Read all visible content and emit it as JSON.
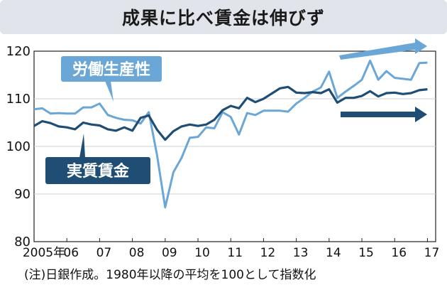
{
  "title": "成果に比べ賃金は伸びず",
  "note": "(注)日銀作成。1980年以降の平均を100として指数化",
  "chart_data": {
    "type": "line",
    "ylim": [
      80,
      120
    ],
    "yticks": [
      "120",
      "110",
      "100",
      "90",
      "80"
    ],
    "xticks": [
      "2005年",
      "06",
      "07",
      "08",
      "09",
      "10",
      "11",
      "12",
      "13",
      "14",
      "15",
      "16",
      "17"
    ],
    "x_range": [
      2005.0,
      2017.25
    ],
    "series": [
      {
        "name": "労働生産性",
        "color": "#6aa6d6",
        "x": [
          2005.0,
          2005.25,
          2005.5,
          2005.75,
          2006.0,
          2006.25,
          2006.5,
          2006.75,
          2007.0,
          2007.25,
          2007.5,
          2007.75,
          2008.0,
          2008.25,
          2008.5,
          2008.75,
          2009.0,
          2009.25,
          2009.5,
          2009.75,
          2010.0,
          2010.25,
          2010.5,
          2010.75,
          2011.0,
          2011.25,
          2011.5,
          2011.75,
          2012.0,
          2012.25,
          2012.5,
          2012.75,
          2013.0,
          2013.25,
          2013.5,
          2013.75,
          2014.0,
          2014.25,
          2014.5,
          2014.75,
          2015.0,
          2015.25,
          2015.5,
          2015.75,
          2016.0,
          2016.25,
          2016.5,
          2016.75,
          2017.0
        ],
        "values": [
          107.8,
          108.0,
          106.9,
          107.0,
          106.9,
          106.9,
          108.2,
          108.2,
          109.0,
          106.6,
          106.0,
          105.6,
          105.5,
          104.8,
          107.2,
          98.2,
          87.2,
          94.6,
          97.6,
          101.8,
          102.0,
          104.0,
          103.8,
          107.2,
          106.2,
          102.5,
          107.0,
          106.6,
          107.5,
          107.5,
          107.5,
          107.3,
          109.0,
          110.2,
          111.5,
          112.4,
          115.7,
          110.2,
          111.5,
          112.7,
          114.0,
          118.0,
          114.0,
          115.8,
          114.4,
          114.2,
          114.0,
          117.5,
          117.6
        ]
      },
      {
        "name": "実質賃金",
        "color": "#1f4d73",
        "x": [
          2005.0,
          2005.25,
          2005.5,
          2005.75,
          2006.0,
          2006.25,
          2006.5,
          2006.75,
          2007.0,
          2007.25,
          2007.5,
          2007.75,
          2008.0,
          2008.25,
          2008.5,
          2008.75,
          2009.0,
          2009.25,
          2009.5,
          2009.75,
          2010.0,
          2010.25,
          2010.5,
          2010.75,
          2011.0,
          2011.25,
          2011.5,
          2011.75,
          2012.0,
          2012.25,
          2012.5,
          2012.75,
          2013.0,
          2013.25,
          2013.5,
          2013.75,
          2014.0,
          2014.25,
          2014.5,
          2014.75,
          2015.0,
          2015.25,
          2015.5,
          2015.75,
          2016.0,
          2016.25,
          2016.5,
          2016.75,
          2017.0
        ],
        "values": [
          104.3,
          105.3,
          104.9,
          104.2,
          104.0,
          103.6,
          105.0,
          104.6,
          104.4,
          103.6,
          103.3,
          104.0,
          103.3,
          106.0,
          106.5,
          103.5,
          101.4,
          103.2,
          104.2,
          104.6,
          104.3,
          104.6,
          105.6,
          107.6,
          108.5,
          108.0,
          110.2,
          109.3,
          110.0,
          111.1,
          112.2,
          112.5,
          111.3,
          111.2,
          111.4,
          111.2,
          112.0,
          109.2,
          110.2,
          110.2,
          110.6,
          111.6,
          110.5,
          111.2,
          111.3,
          111.0,
          111.2,
          111.8,
          112.0
        ]
      }
    ]
  }
}
